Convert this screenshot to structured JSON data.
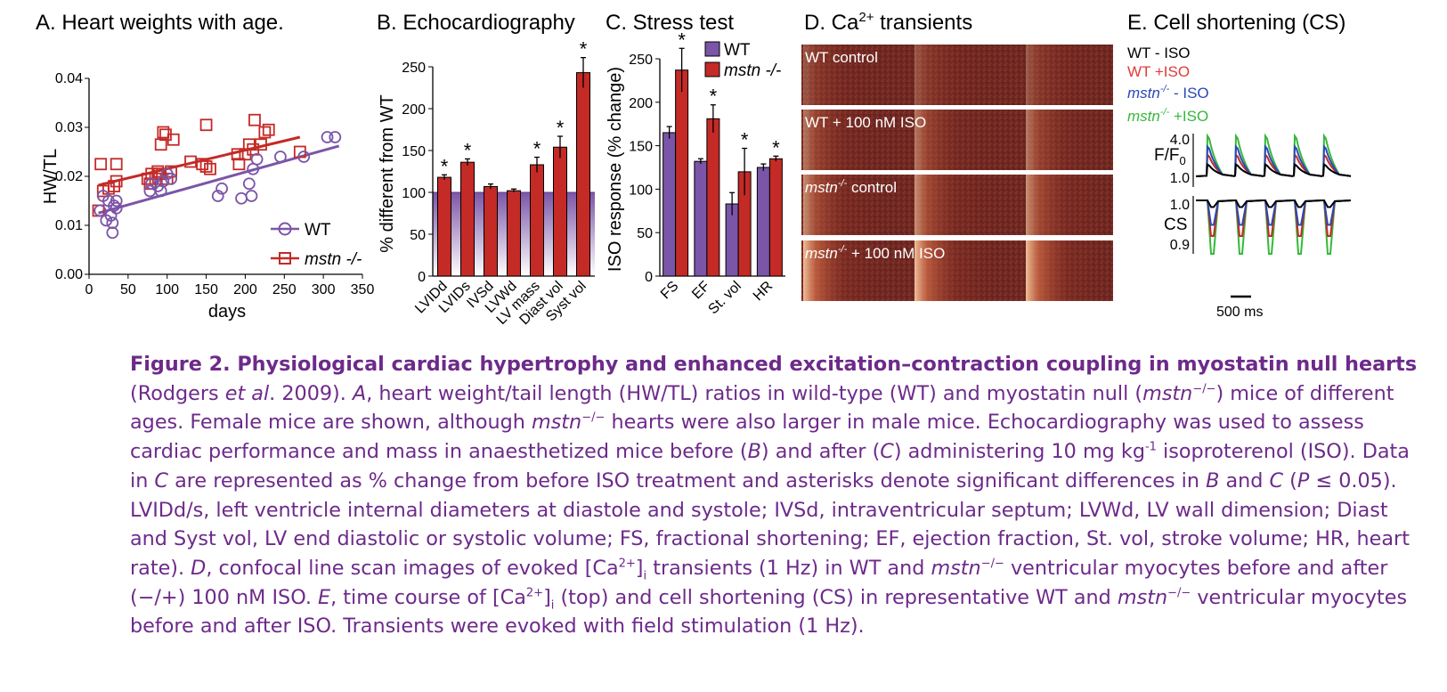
{
  "colors": {
    "wt": "#7b55a8",
    "ko": "#c42a26",
    "wt_iso_trace": "#2b47b5",
    "ko_iso_trace": "#35b83a",
    "wt_trace": "#000000",
    "caption": "#6d2a8a"
  },
  "panelA": {
    "title": "A. Heart weights with age.",
    "legend": {
      "wt": "WT",
      "ko": "mstn -/-"
    },
    "chart_data": {
      "type": "scatter",
      "xlabel": "days",
      "ylabel": "HW/TL",
      "xlim": [
        0,
        350
      ],
      "ylim": [
        0,
        0.04
      ],
      "xticks": [
        "0",
        "50",
        "100",
        "150",
        "200",
        "250",
        "300",
        "350"
      ],
      "yticks": [
        "0.00",
        "0.01",
        "0.02",
        "0.03",
        "0.04"
      ],
      "series": [
        {
          "name": "WT",
          "marker": "circle",
          "points": [
            [
              14,
              0.013
            ],
            [
              18,
              0.016
            ],
            [
              22,
              0.011
            ],
            [
              25,
              0.015
            ],
            [
              28,
              0.012
            ],
            [
              30,
              0.0085
            ],
            [
              30,
              0.0105
            ],
            [
              32,
              0.014
            ],
            [
              35,
              0.0135
            ],
            [
              35,
              0.015
            ],
            [
              78,
              0.017
            ],
            [
              80,
              0.0185
            ],
            [
              88,
              0.018
            ],
            [
              92,
              0.017
            ],
            [
              95,
              0.019
            ],
            [
              100,
              0.0205
            ],
            [
              105,
              0.0195
            ],
            [
              165,
              0.016
            ],
            [
              170,
              0.0175
            ],
            [
              195,
              0.0155
            ],
            [
              205,
              0.0185
            ],
            [
              208,
              0.016
            ],
            [
              210,
              0.0215
            ],
            [
              215,
              0.0235
            ],
            [
              245,
              0.024
            ],
            [
              275,
              0.024
            ],
            [
              305,
              0.028
            ],
            [
              315,
              0.028
            ]
          ],
          "fit": [
            [
              12,
              0.0125
            ],
            [
              320,
              0.0262
            ]
          ]
        },
        {
          "name": "mstn -/-",
          "marker": "square",
          "points": [
            [
              12,
              0.013
            ],
            [
              15,
              0.0225
            ],
            [
              18,
              0.017
            ],
            [
              25,
              0.0175
            ],
            [
              32,
              0.018
            ],
            [
              35,
              0.0225
            ],
            [
              35,
              0.019
            ],
            [
              75,
              0.0195
            ],
            [
              78,
              0.0185
            ],
            [
              80,
              0.0205
            ],
            [
              85,
              0.0195
            ],
            [
              88,
              0.021
            ],
            [
              90,
              0.0205
            ],
            [
              92,
              0.0265
            ],
            [
              95,
              0.029
            ],
            [
              98,
              0.0285
            ],
            [
              100,
              0.0195
            ],
            [
              105,
              0.021
            ],
            [
              108,
              0.0275
            ],
            [
              130,
              0.023
            ],
            [
              145,
              0.0225
            ],
            [
              150,
              0.022
            ],
            [
              150,
              0.0305
            ],
            [
              155,
              0.0215
            ],
            [
              190,
              0.0245
            ],
            [
              192,
              0.0225
            ],
            [
              200,
              0.0245
            ],
            [
              205,
              0.0265
            ],
            [
              210,
              0.0255
            ],
            [
              212,
              0.0315
            ],
            [
              220,
              0.0265
            ],
            [
              225,
              0.029
            ],
            [
              230,
              0.0295
            ],
            [
              270,
              0.025
            ]
          ],
          "fit": [
            [
              12,
              0.0182
            ],
            [
              270,
              0.028
            ]
          ]
        }
      ]
    }
  },
  "panelB": {
    "title": "B. Echocardiography",
    "chart_data": {
      "type": "bar",
      "ylabel": "% different from WT",
      "ylim": [
        0,
        250
      ],
      "baseline": 100,
      "yticks": [
        "0",
        "50",
        "100",
        "150",
        "200",
        "250"
      ],
      "categories": [
        "LVIDd",
        "LVIDs",
        "IVSd",
        "LVWd",
        "LV mass",
        "Diast vol",
        "Syst vol"
      ],
      "values": [
        118,
        136,
        107,
        102,
        133,
        154,
        243
      ],
      "errors": [
        3,
        4,
        3,
        2,
        9,
        13,
        18
      ],
      "significant": [
        true,
        true,
        false,
        false,
        true,
        true,
        true
      ],
      "sig_mark": "*"
    }
  },
  "panelC": {
    "title": "C. Stress test",
    "legend": {
      "wt": "WT",
      "ko": "mstn -/-"
    },
    "chart_data": {
      "type": "bar",
      "ylabel": "ISO response (% change)",
      "ylim": [
        0,
        250
      ],
      "yticks": [
        "0",
        "50",
        "100",
        "150",
        "200",
        "250"
      ],
      "categories": [
        "FS",
        "EF",
        "St. vol",
        "HR"
      ],
      "series": [
        {
          "name": "WT",
          "values": [
            165,
            132,
            83,
            125
          ],
          "errors": [
            7,
            3,
            13,
            4
          ]
        },
        {
          "name": "mstn -/-",
          "values": [
            237,
            181,
            120,
            135
          ],
          "errors": [
            25,
            16,
            27,
            3
          ]
        }
      ],
      "significant": [
        true,
        true,
        true,
        true
      ],
      "sig_mark": "*"
    }
  },
  "panelD": {
    "title_pre": "D. Ca",
    "title_sup": "2+",
    "title_post": " transients",
    "rows": [
      {
        "label_pre": "WT control",
        "label_sup": "",
        "label_post": ""
      },
      {
        "label_pre": "WT + 100 nM ISO",
        "label_sup": "",
        "label_post": ""
      },
      {
        "label_pre": "mstn",
        "label_sup": "-/-",
        "label_post": " control"
      },
      {
        "label_pre": "mstn",
        "label_sup": "-/-",
        "label_post": " + 100 nM ISO"
      }
    ]
  },
  "panelE": {
    "title": "E. Cell shortening (CS)",
    "legend": [
      {
        "pre": "WT - ISO",
        "sup": "",
        "post": ""
      },
      {
        "pre": "WT +ISO",
        "sup": "",
        "post": ""
      },
      {
        "pre": "mstn",
        "sup": "-/-",
        "post": " - ISO"
      },
      {
        "pre": "mstn",
        "sup": "-/-",
        "post": " +ISO"
      }
    ],
    "ylabel_top": "F/F",
    "ylabel_top_sub": "0",
    "yticks_top": [
      "4.0",
      "1.0"
    ],
    "ylabel_bottom": "CS",
    "yticks_bottom": [
      "1.0",
      "0.9"
    ],
    "scale_bar": "500 ms",
    "chart_data": {
      "type": "line",
      "stimulation_hz": 1,
      "series": [
        {
          "name": "WT - ISO",
          "peak_ff0": 2.0,
          "min_cs": 0.985
        },
        {
          "name": "WT +ISO",
          "peak_ff0": 2.8,
          "min_cs": 0.92
        },
        {
          "name": "mstn-/- - ISO",
          "peak_ff0": 3.5,
          "min_cs": 0.945
        },
        {
          "name": "mstn-/- +ISO",
          "peak_ff0": 4.4,
          "min_cs": 0.88
        }
      ]
    }
  },
  "caption": {
    "lead": "Figure 2. Physiological cardiac hypertrophy and enhanced excitation–contraction coupling in myostatin null hearts",
    "segments": [
      {
        "t": " (Rodgers "
      },
      {
        "t": "et al",
        "s": "it"
      },
      {
        "t": ". 2009). "
      },
      {
        "t": "A",
        "s": "it"
      },
      {
        "t": ", heart weight/tail length (HW/TL) ratios in wild-type (WT) and myostatin null ("
      },
      {
        "t": "mstn",
        "s": "it"
      },
      {
        "t": "−/−",
        "s": "sup"
      },
      {
        "t": ") mice of different ages. Female mice are shown, although "
      },
      {
        "t": "mstn",
        "s": "it"
      },
      {
        "t": "−/−",
        "s": "sup"
      },
      {
        "t": " hearts were also larger in male mice. Echocardiography was used to assess cardiac performance and mass in anaesthetized mice before ("
      },
      {
        "t": "B",
        "s": "it"
      },
      {
        "t": ") and after ("
      },
      {
        "t": "C",
        "s": "it"
      },
      {
        "t": ") administering 10 mg kg"
      },
      {
        "t": "-1",
        "s": "sup"
      },
      {
        "t": " isoproterenol (ISO). Data in "
      },
      {
        "t": "C",
        "s": "it"
      },
      {
        "t": " are represented as % change from before ISO treatment and asterisks denote significant differences in "
      },
      {
        "t": "B",
        "s": "it"
      },
      {
        "t": " and "
      },
      {
        "t": "C",
        "s": "it"
      },
      {
        "t": " ("
      },
      {
        "t": "P",
        "s": "it"
      },
      {
        "t": " ≤ 0.05). LVIDd/s, left ventricle internal diameters at diastole and systole; IVSd, intraventricular septum; LVWd, LV wall dimension; Diast and Syst vol, LV end diastolic or systolic volume; FS, fractional shortening; EF, ejection fraction, St. vol, stroke volume; HR, heart rate). "
      },
      {
        "t": "D",
        "s": "it"
      },
      {
        "t": ", confocal line scan images of evoked [Ca"
      },
      {
        "t": "2+",
        "s": "sup"
      },
      {
        "t": "]"
      },
      {
        "t": "i",
        "s": "sub"
      },
      {
        "t": " transients (1 Hz) in WT and "
      },
      {
        "t": "mstn",
        "s": "it"
      },
      {
        "t": "−/−",
        "s": "sup"
      },
      {
        "t": " ventricular myocytes before and after (−/+) 100 nM ISO. "
      },
      {
        "t": "E",
        "s": "it"
      },
      {
        "t": ", time course of [Ca"
      },
      {
        "t": "2+",
        "s": "sup"
      },
      {
        "t": "]"
      },
      {
        "t": "i",
        "s": "sub"
      },
      {
        "t": " (top) and cell shortening (CS) in representative WT and "
      },
      {
        "t": "mstn",
        "s": "it"
      },
      {
        "t": "−/−",
        "s": "sup"
      },
      {
        "t": " ventricular myocytes before and after ISO. Transients were evoked with field stimulation (1 Hz)."
      }
    ]
  }
}
